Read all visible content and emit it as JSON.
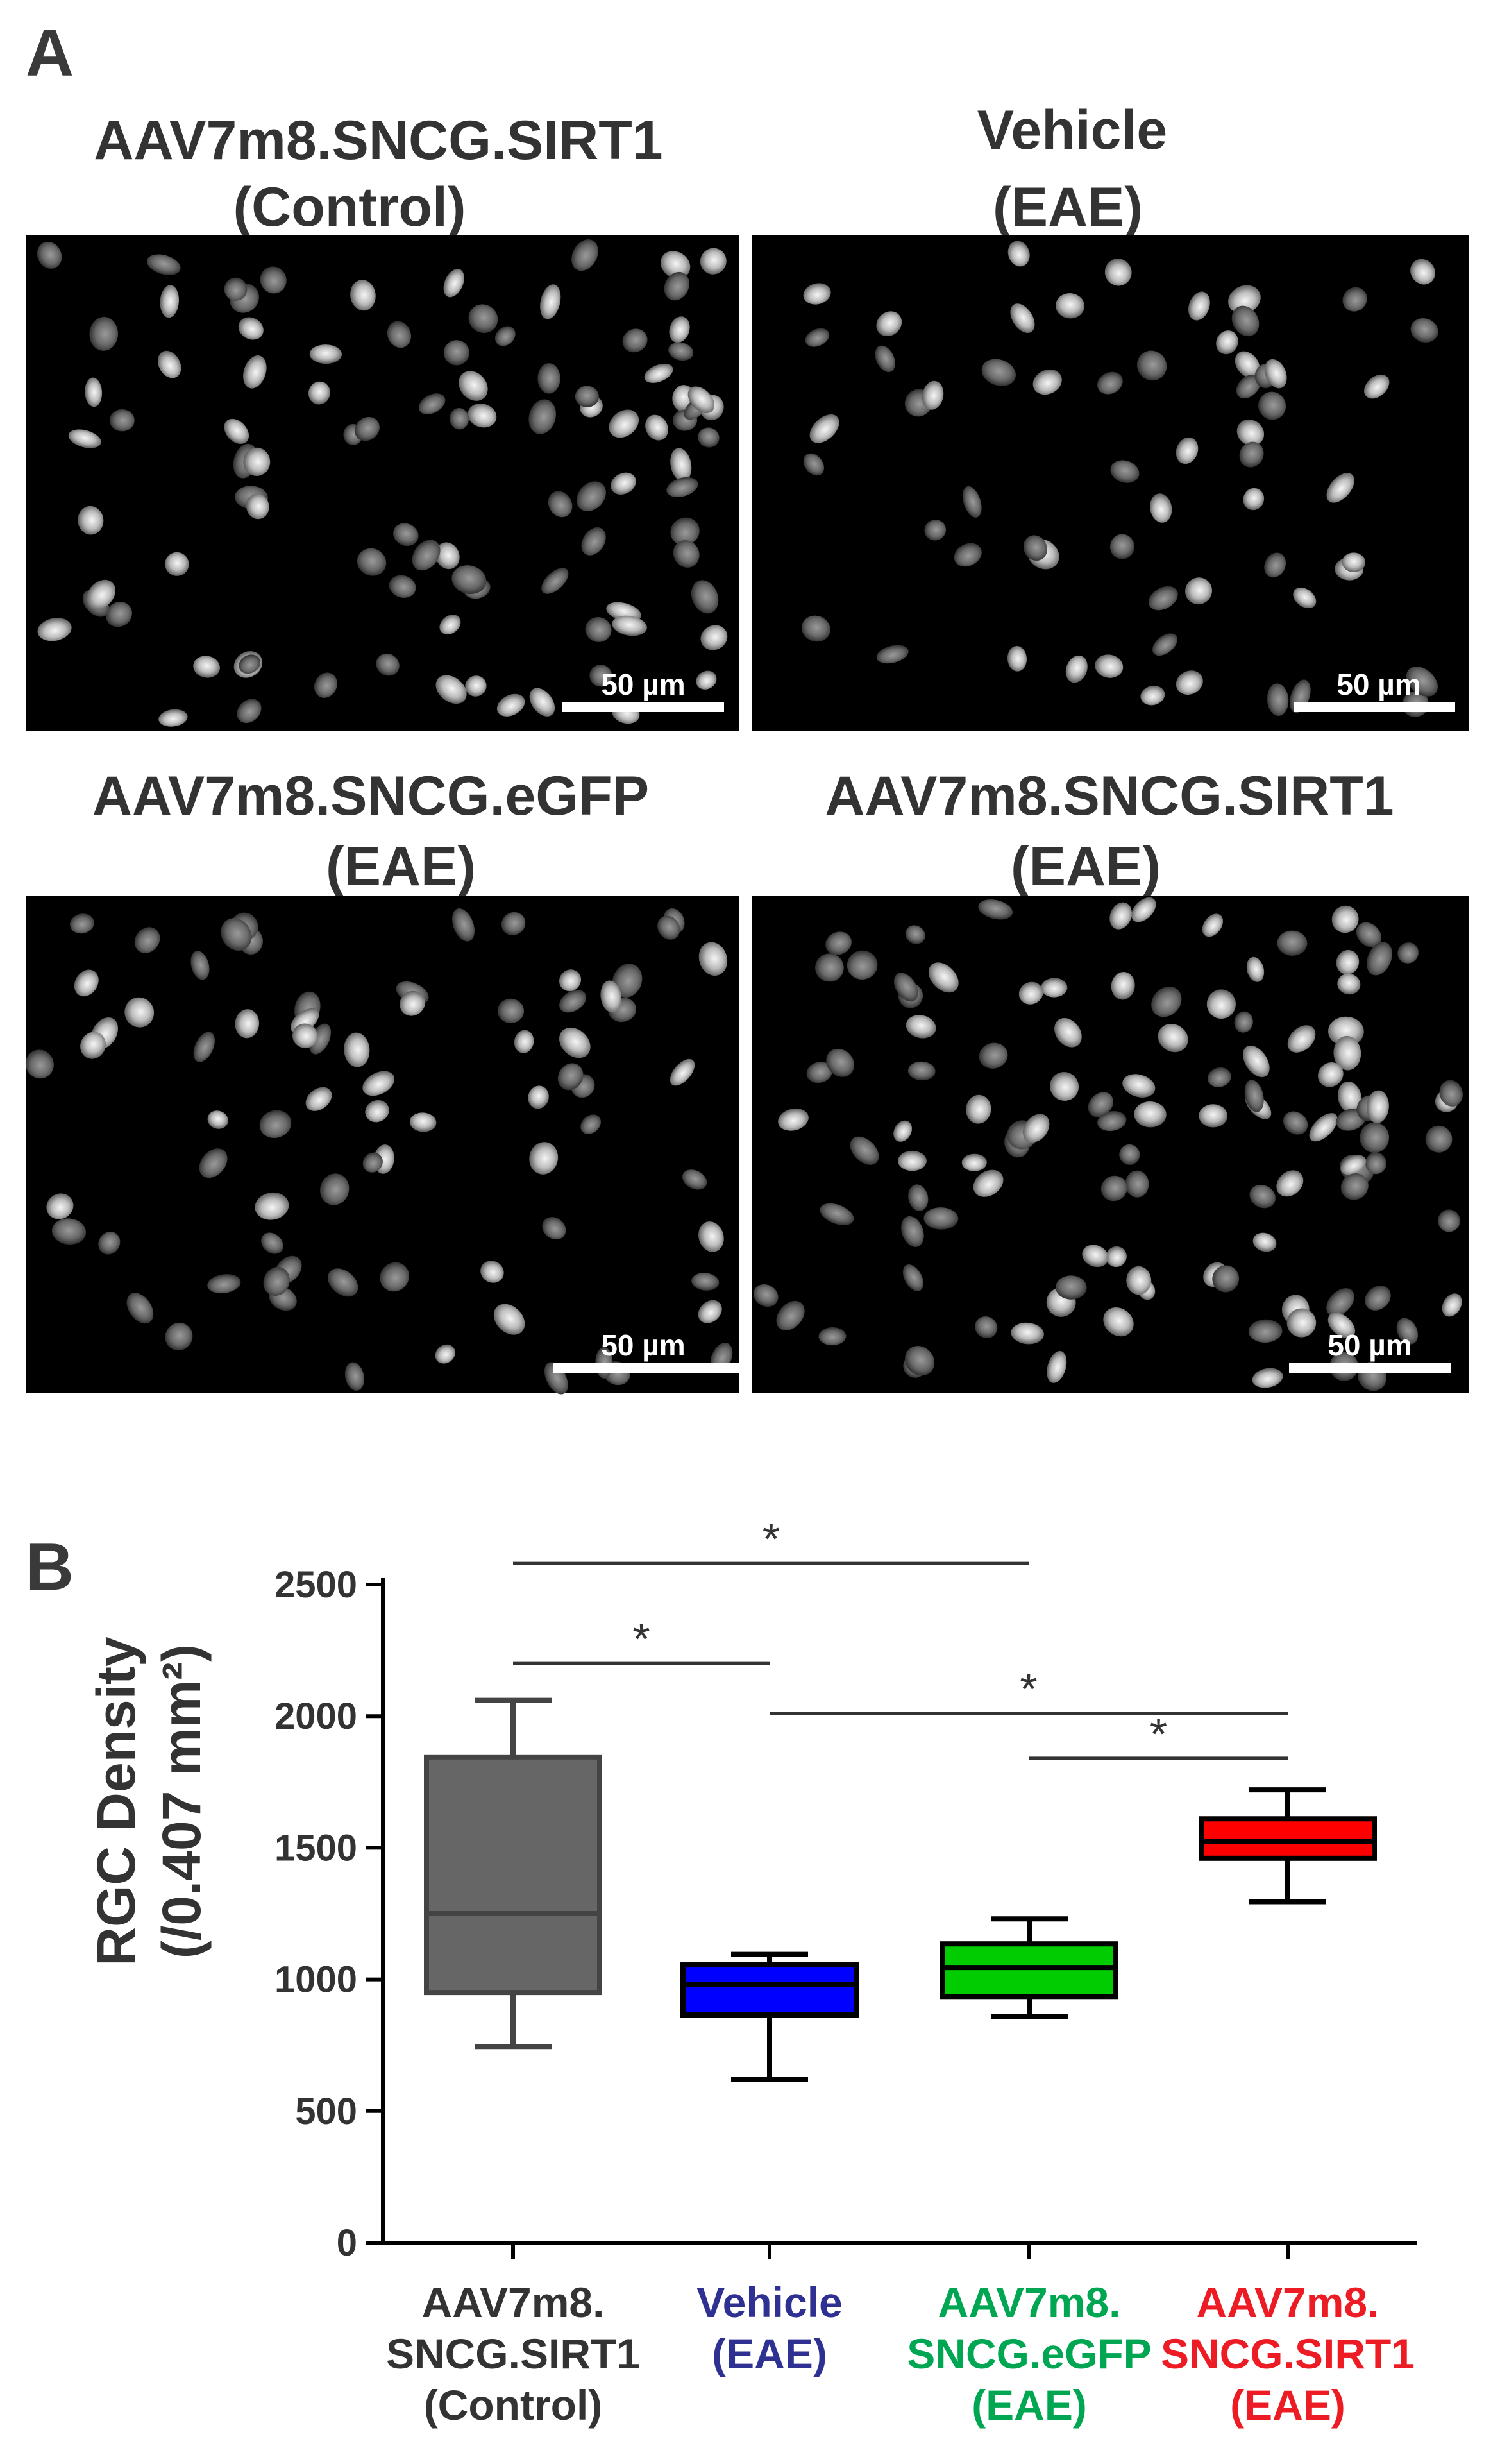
{
  "panel_a": {
    "letter": "A",
    "images": [
      {
        "title": [
          "AAV7m8.SNCG.SIRT1",
          "(Control)"
        ],
        "scale_bar": "50 µm"
      },
      {
        "title": [
          "Vehicle",
          "(EAE)"
        ],
        "scale_bar": "50 µm"
      },
      {
        "title": [
          "AAV7m8.SNCG.eGFP",
          "(EAE)"
        ],
        "scale_bar": "50 µm"
      },
      {
        "title": [
          "AAV7m8.SNCG.SIRT1",
          "(EAE)"
        ],
        "scale_bar": "50 µm"
      }
    ]
  },
  "panel_b": {
    "letter": "B",
    "chart_data": {
      "type": "box",
      "ylabel": [
        "RGC Density",
        "(/0.407 mm²)"
      ],
      "ylim": [
        0,
        2500
      ],
      "yticks": [
        0,
        500,
        1000,
        1500,
        2000,
        2500
      ],
      "grid": false,
      "categories": [
        {
          "lines": [
            "AAV7m8.",
            "SNCG.SIRT1",
            "(Control)"
          ],
          "color": "#333333"
        },
        {
          "lines": [
            "Vehicle",
            "(EAE)"
          ],
          "color": "#2e3192"
        },
        {
          "lines": [
            "AAV7m8.",
            "SNCG.eGFP",
            "(EAE)"
          ],
          "color": "#00a651"
        },
        {
          "lines": [
            "AAV7m8.",
            "SNCG.SIRT1",
            "(EAE)"
          ],
          "color": "#ed1c24"
        }
      ],
      "boxes": [
        {
          "min": 745,
          "q1": 950,
          "median": 1250,
          "q3": 1845,
          "max": 2060,
          "fill": "#666666",
          "stroke": "#444444"
        },
        {
          "min": 620,
          "q1": 865,
          "median": 980,
          "q3": 1055,
          "max": 1095,
          "fill": "#0000ff",
          "stroke": "#000000"
        },
        {
          "min": 860,
          "q1": 935,
          "median": 1045,
          "q3": 1135,
          "max": 1230,
          "fill": "#00cc00",
          "stroke": "#000000"
        },
        {
          "min": 1295,
          "q1": 1460,
          "median": 1525,
          "q3": 1610,
          "max": 1720,
          "fill": "#ff0000",
          "stroke": "#000000"
        }
      ],
      "significance": [
        {
          "from": 0,
          "to": 2,
          "y": 2580,
          "label": "*"
        },
        {
          "from": 0,
          "to": 1,
          "y": 2200,
          "label": "*"
        },
        {
          "from": 1,
          "to": 3,
          "y": 2010,
          "label": "*"
        },
        {
          "from": 2,
          "to": 3,
          "y": 1840,
          "label": "*"
        }
      ]
    }
  }
}
